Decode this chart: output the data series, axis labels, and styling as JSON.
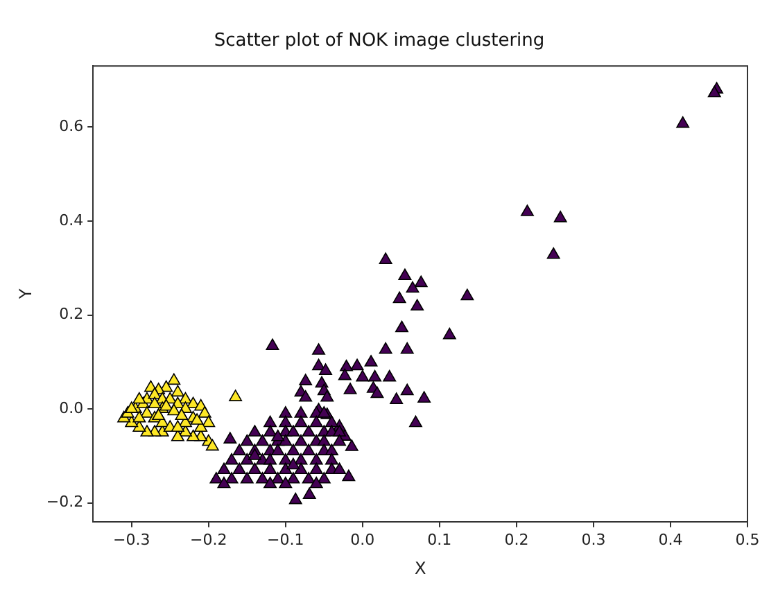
{
  "chart_data": {
    "type": "scatter",
    "title": "Scatter plot of NOK image clustering",
    "xlabel": "X",
    "ylabel": "Y",
    "xlim": [
      -0.35,
      0.5
    ],
    "ylim": [
      -0.24,
      0.73
    ],
    "xticks": [
      {
        "value": -0.3,
        "label": "−0.3"
      },
      {
        "value": -0.2,
        "label": "−0.2"
      },
      {
        "value": -0.1,
        "label": "−0.1"
      },
      {
        "value": 0,
        "label": "0.0"
      },
      0.1,
      0.2,
      0.3,
      0.4,
      0.5
    ],
    "yticks": [
      {
        "value": -0.2,
        "label": "−0.2"
      },
      {
        "value": 0,
        "label": "0.0"
      },
      0.2,
      0.4,
      0.6
    ],
    "grid": false,
    "legend": false,
    "marker": "triangle",
    "series": [
      {
        "color": "#440154",
        "x": [
          0.46,
          0.457,
          0.416,
          0.214,
          0.257,
          0.248,
          0.03,
          0.055,
          0.076,
          0.065,
          0.048,
          0.071,
          0.136,
          0.051,
          0.113,
          -0.117,
          -0.057,
          0.03,
          0.058,
          0.011,
          -0.007,
          -0.021,
          -0.057,
          -0.048,
          -0.023,
          0.0,
          0.016,
          0.035,
          -0.074,
          -0.053,
          -0.016,
          0.014,
          -0.05,
          -0.08,
          0.019,
          0.058,
          -0.074,
          -0.046,
          0.044,
          0.08,
          0.069,
          -0.03,
          -0.023,
          -0.014,
          -0.018,
          -0.172,
          -0.087,
          -0.069,
          -0.046,
          -0.057,
          -0.08,
          -0.06,
          -0.05,
          -0.1,
          -0.12,
          -0.1,
          -0.08,
          -0.06,
          -0.04,
          -0.14,
          -0.12,
          -0.1,
          -0.09,
          -0.07,
          -0.05,
          -0.04,
          -0.03,
          -0.15,
          -0.13,
          -0.11,
          -0.1,
          -0.08,
          -0.06,
          -0.05,
          -0.03,
          -0.16,
          -0.14,
          -0.12,
          -0.11,
          -0.09,
          -0.07,
          -0.05,
          -0.04,
          -0.17,
          -0.15,
          -0.13,
          -0.12,
          -0.1,
          -0.08,
          -0.06,
          -0.04,
          -0.18,
          -0.16,
          -0.14,
          -0.12,
          -0.1,
          -0.08,
          -0.06,
          -0.04,
          -0.03,
          -0.19,
          -0.17,
          -0.15,
          -0.13,
          -0.11,
          -0.09,
          -0.07,
          -0.05,
          -0.18,
          -0.12,
          -0.1,
          -0.06,
          -0.14,
          -0.11,
          -0.09
        ],
        "values": [
          0.68,
          0.672,
          0.607,
          0.419,
          0.406,
          0.328,
          0.317,
          0.283,
          0.268,
          0.256,
          0.234,
          0.218,
          0.24,
          0.172,
          0.157,
          0.134,
          0.124,
          0.126,
          0.126,
          0.099,
          0.091,
          0.089,
          0.091,
          0.081,
          0.07,
          0.067,
          0.067,
          0.067,
          0.059,
          0.054,
          0.04,
          0.043,
          0.038,
          0.035,
          0.032,
          0.038,
          0.024,
          0.024,
          0.019,
          0.022,
          -0.03,
          -0.038,
          -0.059,
          -0.081,
          -0.145,
          -0.065,
          -0.194,
          -0.183,
          -0.013,
          -0.003,
          -0.01,
          -0.01,
          -0.01,
          -0.01,
          -0.03,
          -0.03,
          -0.03,
          -0.03,
          -0.03,
          -0.05,
          -0.05,
          -0.05,
          -0.05,
          -0.05,
          -0.05,
          -0.05,
          -0.05,
          -0.07,
          -0.07,
          -0.07,
          -0.07,
          -0.07,
          -0.07,
          -0.07,
          -0.07,
          -0.09,
          -0.09,
          -0.09,
          -0.09,
          -0.09,
          -0.09,
          -0.09,
          -0.09,
          -0.11,
          -0.11,
          -0.11,
          -0.11,
          -0.11,
          -0.11,
          -0.11,
          -0.11,
          -0.13,
          -0.13,
          -0.13,
          -0.13,
          -0.13,
          -0.13,
          -0.13,
          -0.13,
          -0.13,
          -0.15,
          -0.15,
          -0.15,
          -0.15,
          -0.15,
          -0.15,
          -0.15,
          -0.15,
          -0.16,
          -0.16,
          -0.16,
          -0.16,
          -0.1,
          -0.06,
          -0.12
        ]
      },
      {
        "color": "#fde725",
        "x": [
          -0.245,
          -0.255,
          -0.265,
          -0.275,
          -0.24,
          -0.23,
          -0.22,
          -0.21,
          -0.205,
          -0.2,
          -0.2,
          -0.195,
          -0.21,
          -0.22,
          -0.23,
          -0.24,
          -0.26,
          -0.27,
          -0.28,
          -0.29,
          -0.3,
          -0.31,
          -0.305,
          -0.295,
          -0.285,
          -0.28,
          -0.27,
          -0.26,
          -0.25,
          -0.24,
          -0.23,
          -0.22,
          -0.23,
          -0.26,
          -0.27,
          -0.28,
          -0.29,
          -0.27,
          -0.26,
          -0.25,
          -0.24,
          -0.21,
          -0.215,
          -0.29,
          -0.3,
          -0.265,
          -0.255,
          -0.245,
          -0.235,
          -0.165
        ],
        "values": [
          0.06,
          0.045,
          0.04,
          0.045,
          0.035,
          0.02,
          0.01,
          0.005,
          -0.01,
          -0.03,
          -0.07,
          -0.08,
          -0.06,
          -0.06,
          -0.05,
          -0.06,
          -0.05,
          -0.05,
          -0.05,
          -0.04,
          -0.03,
          -0.02,
          -0.01,
          0.0,
          0.01,
          0.02,
          0.03,
          0.02,
          0.02,
          0.01,
          0.0,
          -0.02,
          -0.03,
          0.0,
          0.01,
          -0.01,
          -0.02,
          -0.02,
          -0.03,
          -0.04,
          -0.04,
          -0.04,
          -0.025,
          0.02,
          0.0,
          -0.015,
          0.005,
          -0.005,
          -0.015,
          0.025
        ]
      }
    ]
  }
}
